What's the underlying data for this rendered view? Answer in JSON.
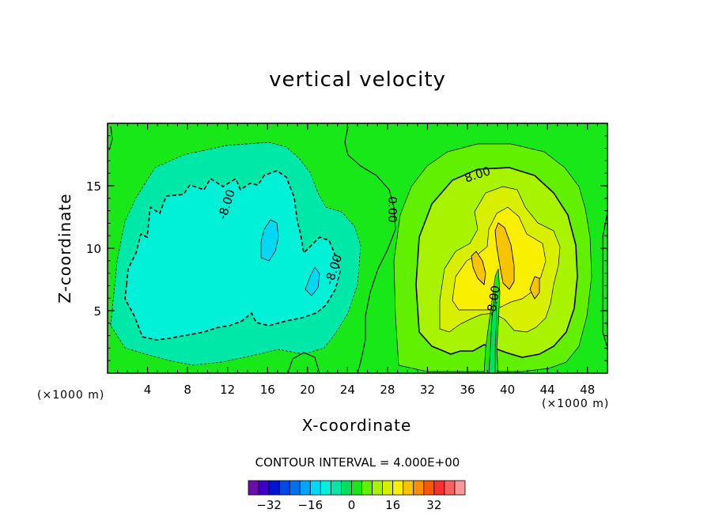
{
  "chart_data": {
    "type": "heatmap",
    "title": "vertical velocity",
    "xlabel": "X-coordinate",
    "ylabel": "Z-coordinate",
    "x_unit": "(×1000 m)",
    "z_unit": "(×1000 m)",
    "xlim": [
      0,
      50
    ],
    "ylim": [
      0,
      20
    ],
    "x_ticks": [
      4,
      8,
      12,
      16,
      20,
      24,
      28,
      32,
      36,
      40,
      44,
      48
    ],
    "y_ticks": [
      5,
      10,
      15
    ],
    "contour_interval_text": "CONTOUR INTERVAL = 4.000E+00",
    "contour_labels": [
      "8.00",
      "-8.00",
      "-8.00",
      "0.00",
      "-8.00"
    ],
    "colorbar": {
      "levels": [
        -36,
        -32,
        -28,
        -24,
        -20,
        -16,
        -12,
        -8,
        -4,
        0,
        4,
        8,
        12,
        16,
        20,
        24,
        28,
        32,
        36
      ],
      "colors": [
        "#6a0dad",
        "#3a00c8",
        "#0014d8",
        "#0048e8",
        "#0070f0",
        "#00a4f8",
        "#00d8f4",
        "#00f0d8",
        "#00e8a8",
        "#00e060",
        "#18e818",
        "#60f000",
        "#a8f400",
        "#d8f000",
        "#f8f000",
        "#f8c400",
        "#f89000",
        "#f85800",
        "#f83030",
        "#f86060",
        "#f89898"
      ],
      "tick_labels": [
        "-32",
        "-16",
        "0",
        "16",
        "32"
      ],
      "tick_values": [
        -32,
        -16,
        0,
        16,
        32
      ]
    },
    "background_color": "#18e818",
    "fields": [
      {
        "sign": "negative",
        "x_range": [
          1,
          25
        ],
        "z_range": [
          1.5,
          18
        ],
        "max_magnitude": 16
      },
      {
        "sign": "positive",
        "x_range": [
          30,
          50
        ],
        "z_range": [
          0.5,
          17
        ],
        "max_magnitude": 24
      }
    ]
  }
}
